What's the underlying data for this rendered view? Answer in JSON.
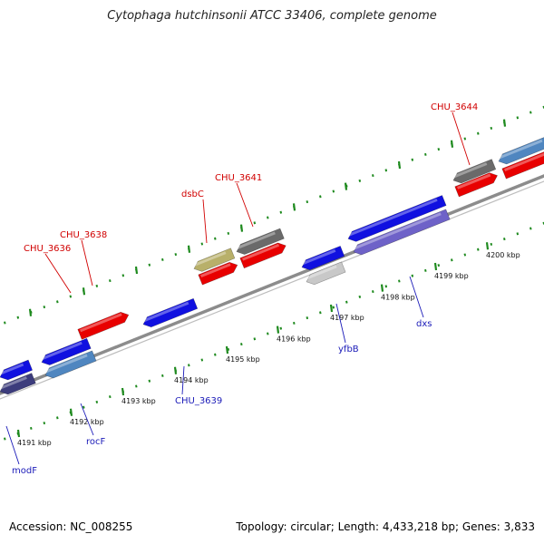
{
  "title": "Cytophaga hutchinsonii ATCC 33406, complete genome",
  "accession": "Accession: NC_008255",
  "topology": "Topology: circular; Length: 4,433,218 bp; Genes: 3,833",
  "colors": {
    "backbone": "#8c8c8c",
    "tick_green": "#1e8a1e",
    "label_forward": "#d10000",
    "label_reverse": "#1a1ab8",
    "cds_red": "#e80000",
    "cds_blue": "#1010e0",
    "cds_steelblue": "#4f86c0",
    "cds_gray": "#6a6a6a",
    "cds_khaki": "#b8b06a",
    "cds_lightgray": "#c8c8c8",
    "cds_navy": "#3c3c7c",
    "cds_lavender": "#6e62c8"
  },
  "tick_labels": [
    "4191 kbp",
    "4192 kbp",
    "4193 kbp",
    "4194 kbp",
    "4195 kbp",
    "4196 kbp",
    "4197 kbp",
    "4198 kbp",
    "4199 kbp",
    "4200 kbp"
  ],
  "gene_labels": {
    "forward": [
      "CHU_3636",
      "CHU_3638",
      "dsbC",
      "CHU_3641",
      "CHU_3644"
    ],
    "reverse": [
      "modF",
      "rocF",
      "CHU_3639",
      "yfbB",
      "dxs"
    ]
  }
}
